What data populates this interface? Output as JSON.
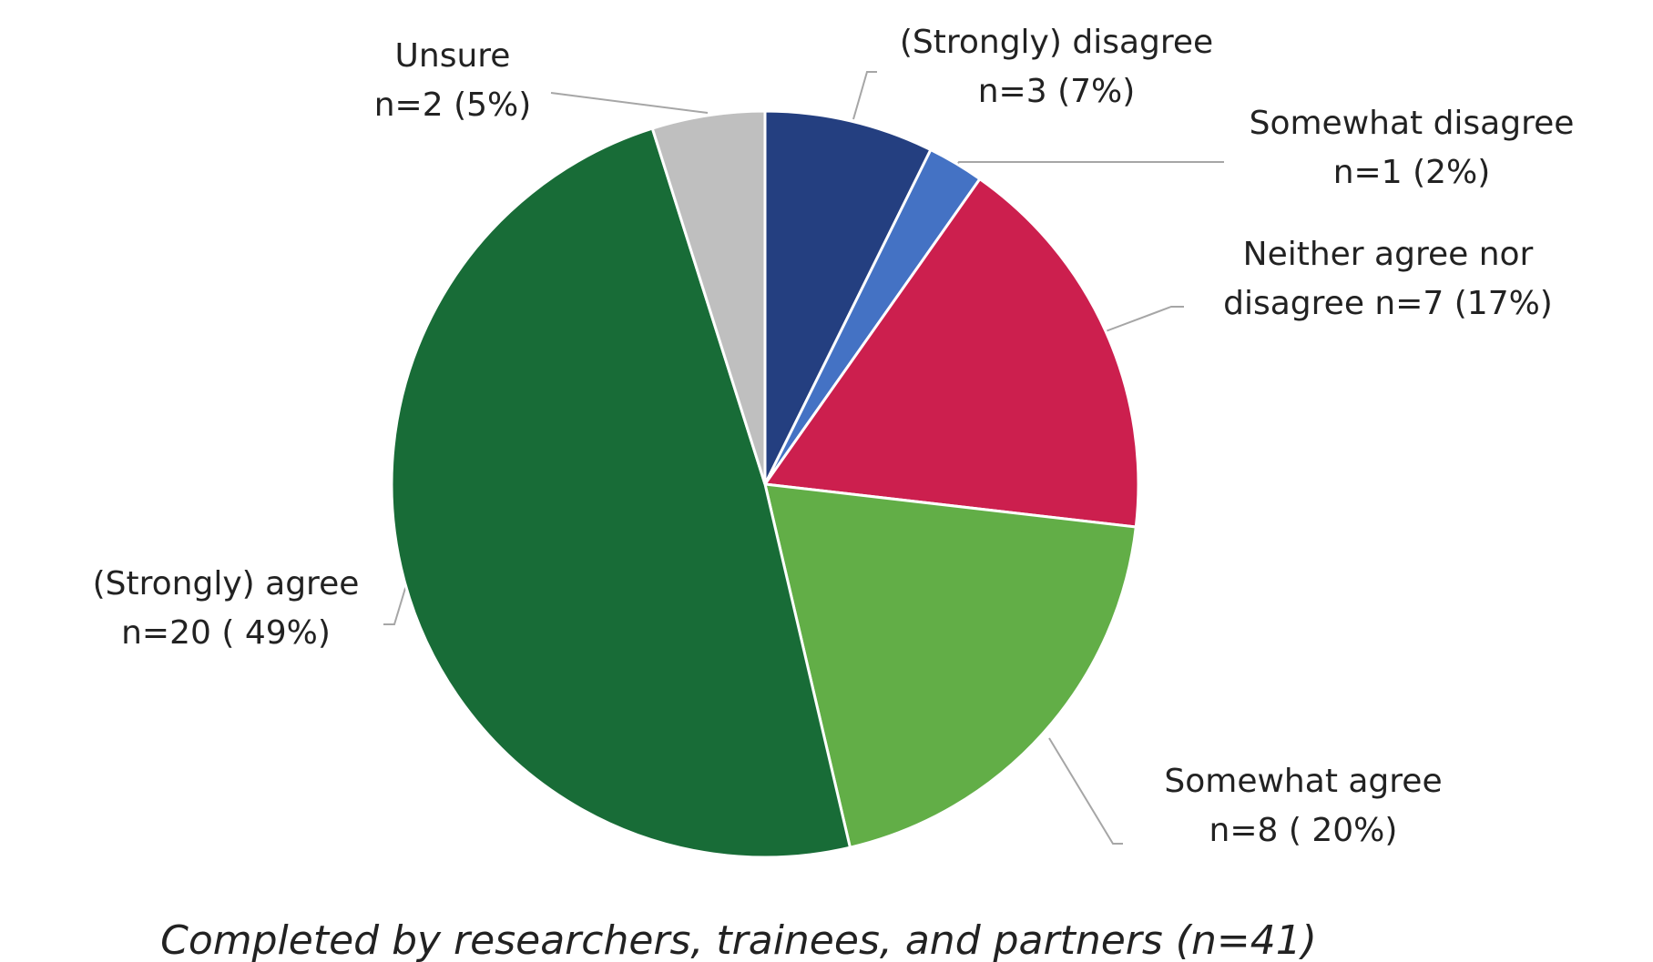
{
  "chart_data": {
    "type": "pie",
    "categories": [
      "(Strongly) disagree",
      "Somewhat disagree",
      "Neither agree nor disagree",
      "Somewhat agree",
      "(Strongly) agree",
      "Unsure"
    ],
    "values": [
      3,
      1,
      7,
      8,
      20,
      2
    ],
    "value_labels": [
      "n=3 (7%)",
      "n=1 (2%)",
      "n=7 (17%)",
      "n=8 ( 20%)",
      "n=20 ( 49%)",
      "n=2 (5%)"
    ],
    "colors": [
      "#243f80",
      "#4472c4",
      "#cc1f4e",
      "#62ae47",
      "#186c37",
      "#bfbfbf"
    ],
    "caption": "Completed by researchers, trainees, and partners (n=41)"
  }
}
